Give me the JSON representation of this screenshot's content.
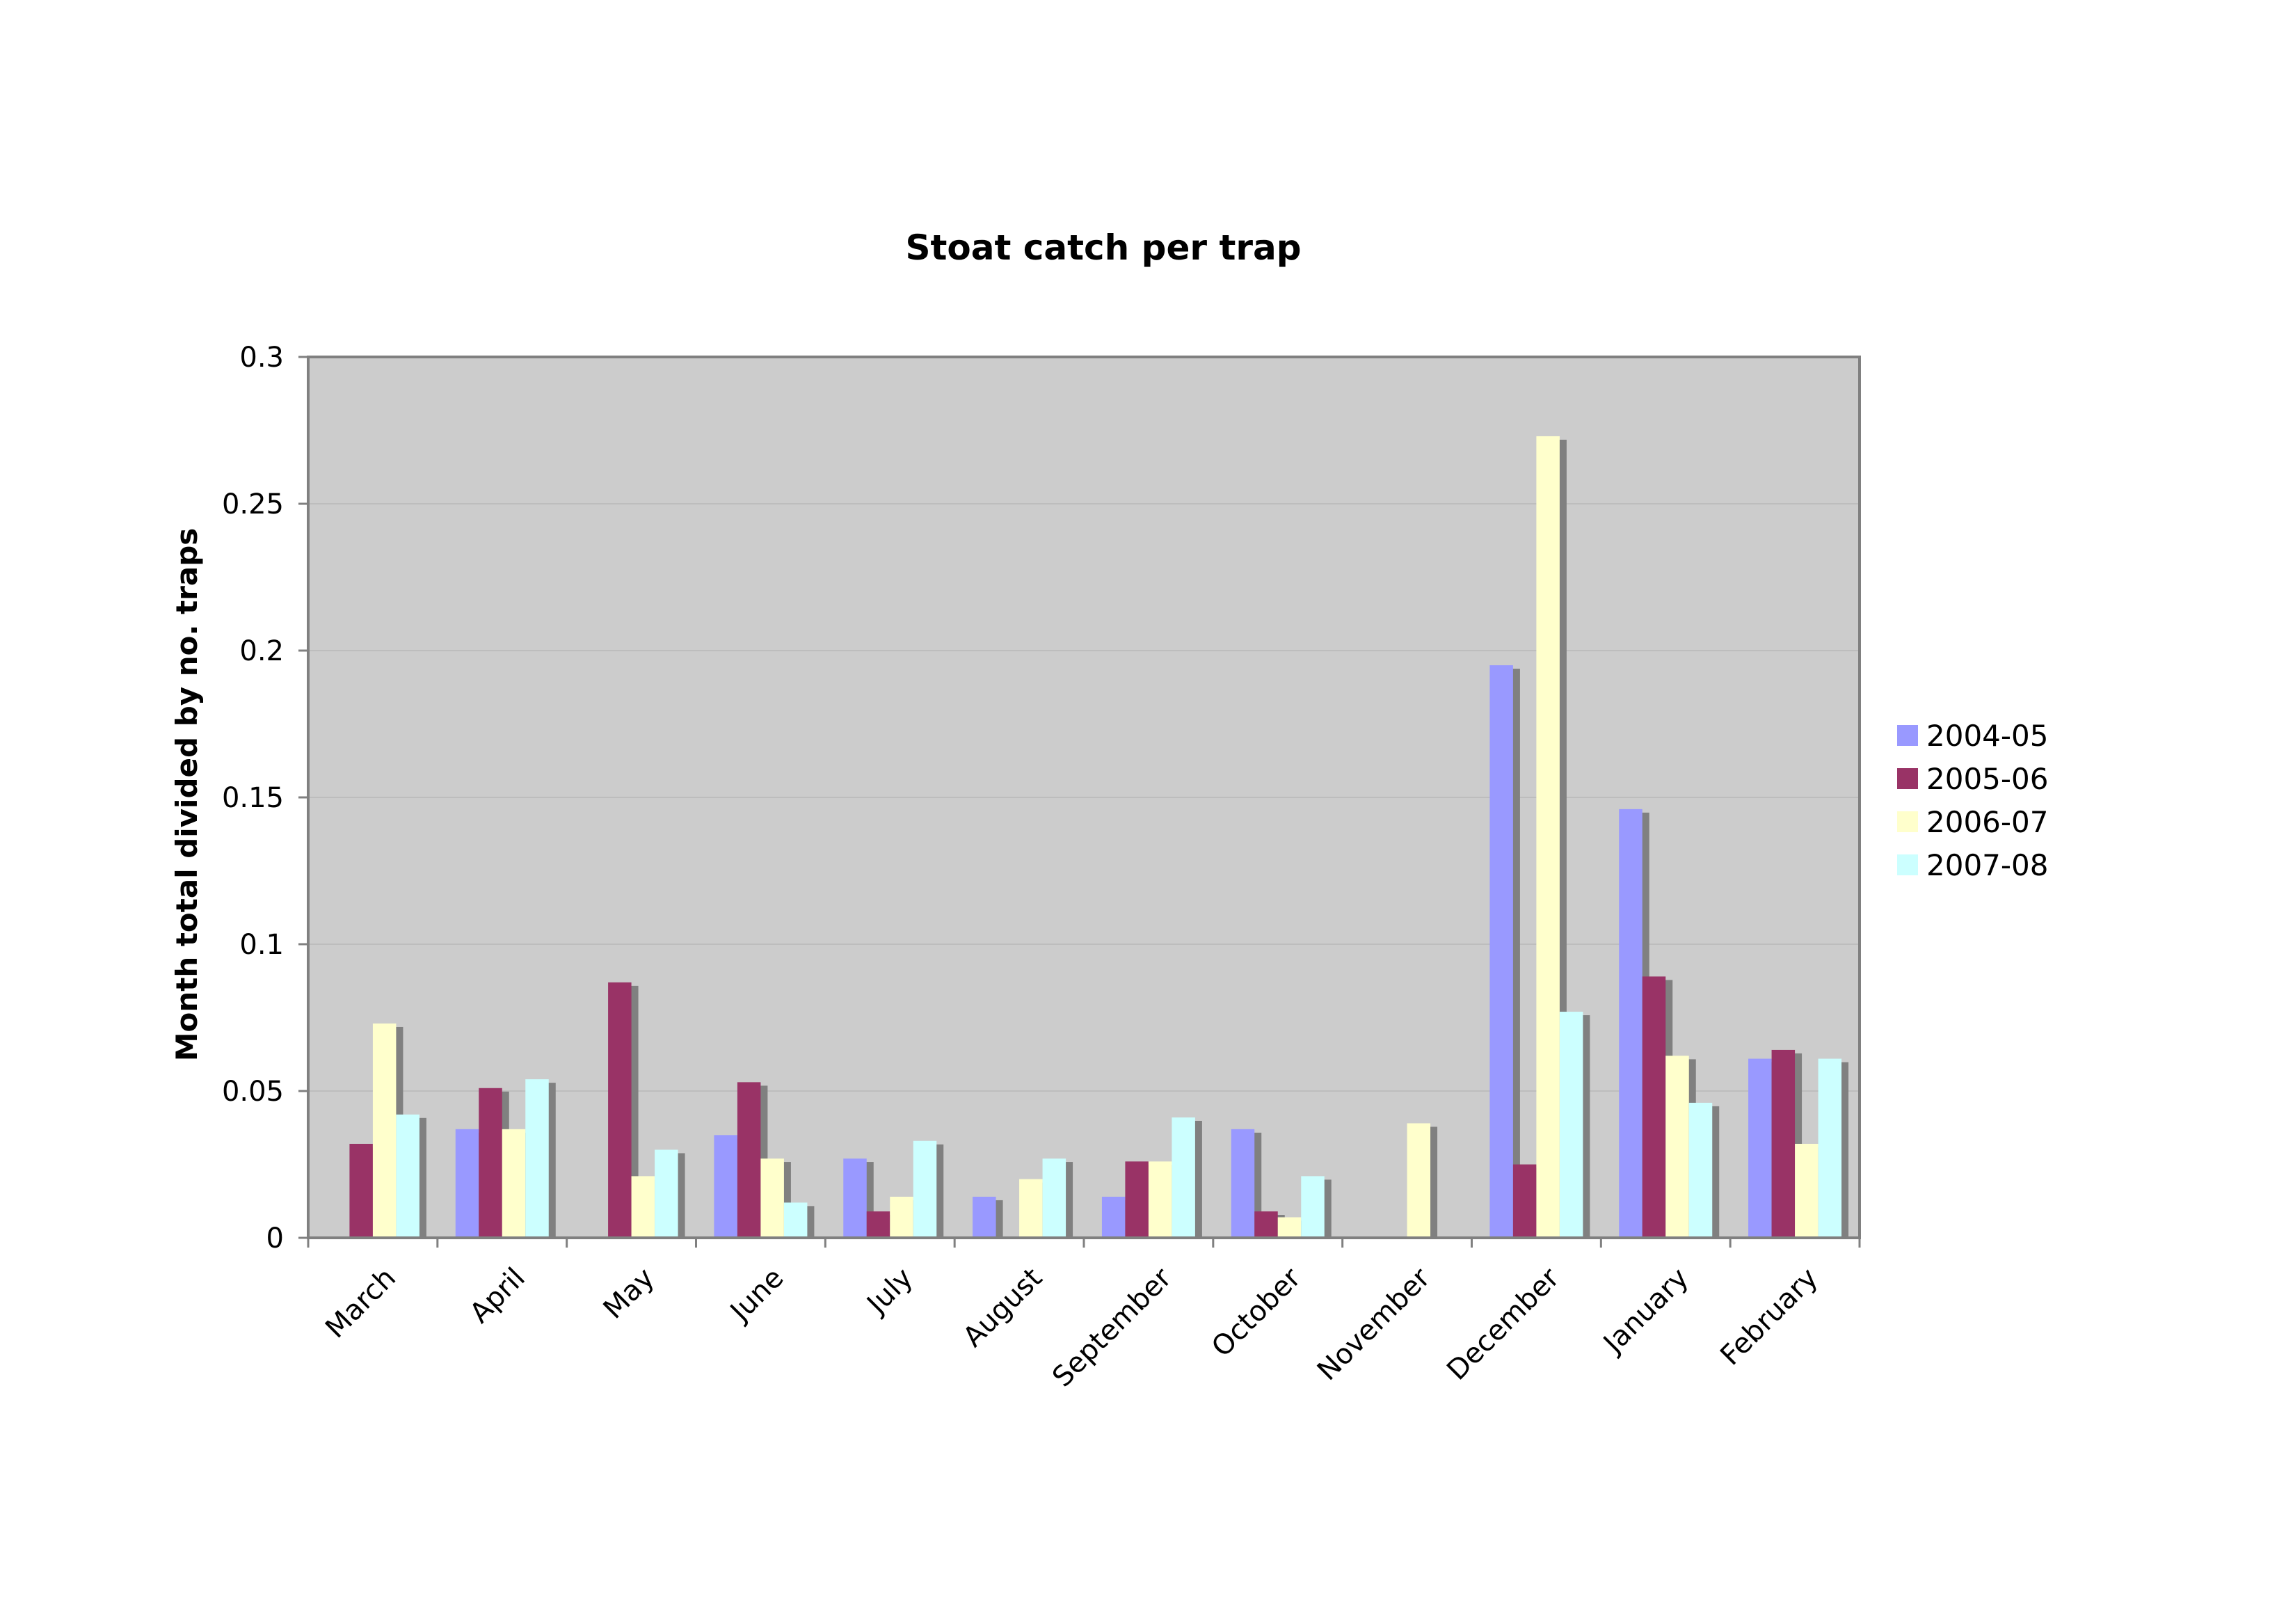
{
  "chart_data": {
    "type": "bar",
    "title": "Stoat catch per trap",
    "xlabel": "",
    "ylabel": "Month total divided by no. traps",
    "ylim": [
      0,
      0.3
    ],
    "yticks": [
      0,
      0.05,
      0.1,
      0.15,
      0.2,
      0.25,
      0.3
    ],
    "ytick_labels": [
      "0",
      "0.05",
      "0.1",
      "0.15",
      "0.2",
      "0.25",
      "0.3"
    ],
    "grid": true,
    "legend_position": "right",
    "plot_background": "#cccccc",
    "categories": [
      "March",
      "April",
      "May",
      "June",
      "July",
      "August",
      "September",
      "October",
      "November",
      "December",
      "January",
      "February"
    ],
    "series": [
      {
        "name": "2004-05",
        "color": "#9999ff",
        "values": [
          0,
          0.037,
          0,
          0.035,
          0.027,
          0.014,
          0.014,
          0.037,
          0,
          0.195,
          0.146,
          0.061
        ]
      },
      {
        "name": "2005-06",
        "color": "#993366",
        "values": [
          0.032,
          0.051,
          0.087,
          0.053,
          0.009,
          0,
          0.026,
          0.009,
          0,
          0.025,
          0.089,
          0.064
        ]
      },
      {
        "name": "2006-07",
        "color": "#ffffcc",
        "values": [
          0.073,
          0.037,
          0.021,
          0.027,
          0.014,
          0.02,
          0.026,
          0.007,
          0.039,
          0.273,
          0.062,
          0.032
        ]
      },
      {
        "name": "2007-08",
        "color": "#ccffff",
        "values": [
          0.042,
          0.054,
          0.03,
          0.012,
          0.033,
          0.027,
          0.041,
          0.021,
          0,
          0.077,
          0.046,
          0.061
        ]
      }
    ]
  }
}
